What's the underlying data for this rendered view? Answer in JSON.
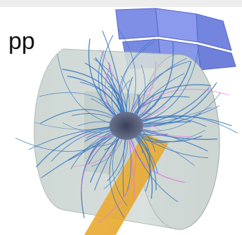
{
  "label": "pp"
}
